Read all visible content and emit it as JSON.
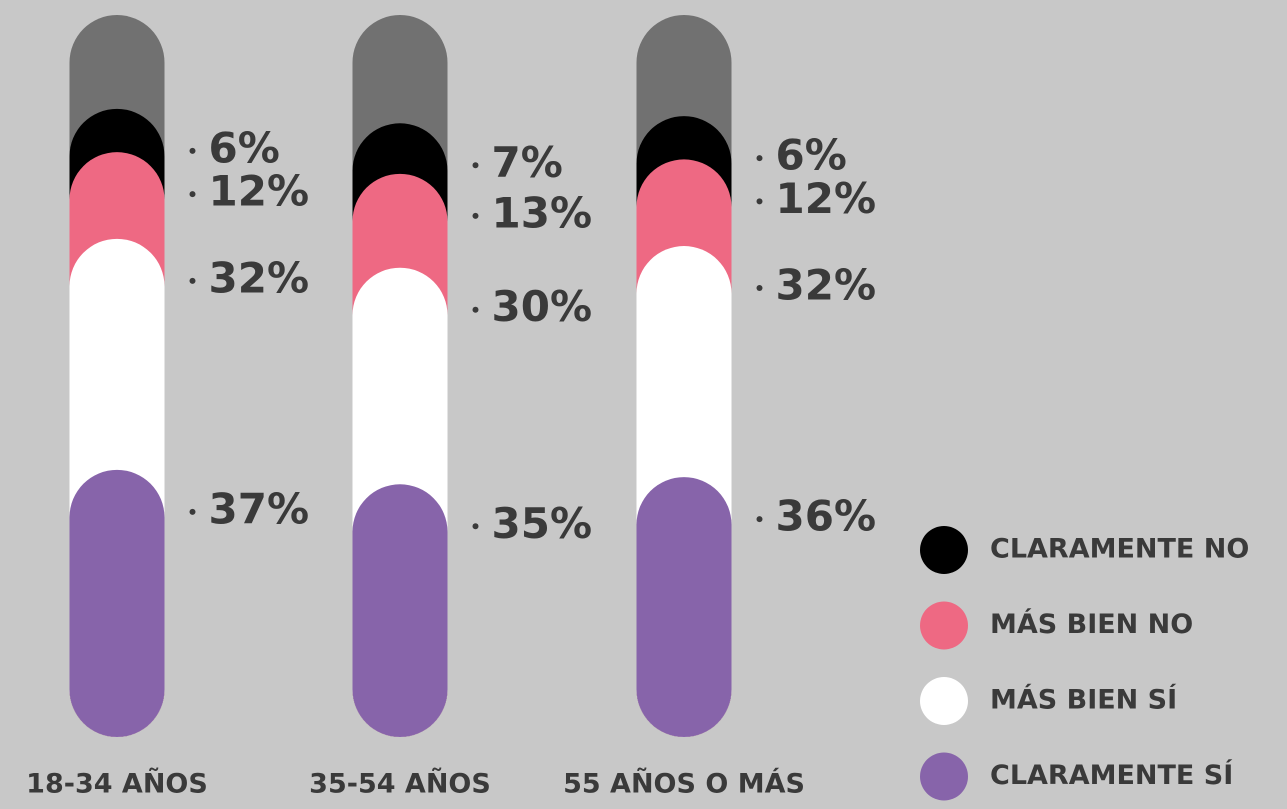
{
  "chart_data": {
    "type": "stacked-bar",
    "categories": [
      "18-34 AÑOS",
      "35-54 AÑOS",
      "55 AÑOS O MÁS"
    ],
    "series": [
      {
        "name": "CLARAMENTE NO",
        "color": "#000000",
        "values": [
          6,
          7,
          6
        ],
        "value_labels": [
          "6%",
          "7%",
          "6%"
        ]
      },
      {
        "name": "MÁS BIEN NO",
        "color": "#ee6983",
        "values": [
          12,
          13,
          12
        ],
        "value_labels": [
          "12%",
          "13%",
          "12%"
        ]
      },
      {
        "name": "MÁS BIEN SÍ",
        "color": "#ffffff",
        "values": [
          32,
          30,
          32
        ],
        "value_labels": [
          "32%",
          "30%",
          "32%"
        ]
      },
      {
        "name": "CLARAMENTE SÍ",
        "color": "#8764aa",
        "values": [
          37,
          35,
          36
        ],
        "value_labels": [
          "37%",
          "35%",
          "36%"
        ]
      }
    ],
    "ylim": [
      0,
      100
    ]
  }
}
